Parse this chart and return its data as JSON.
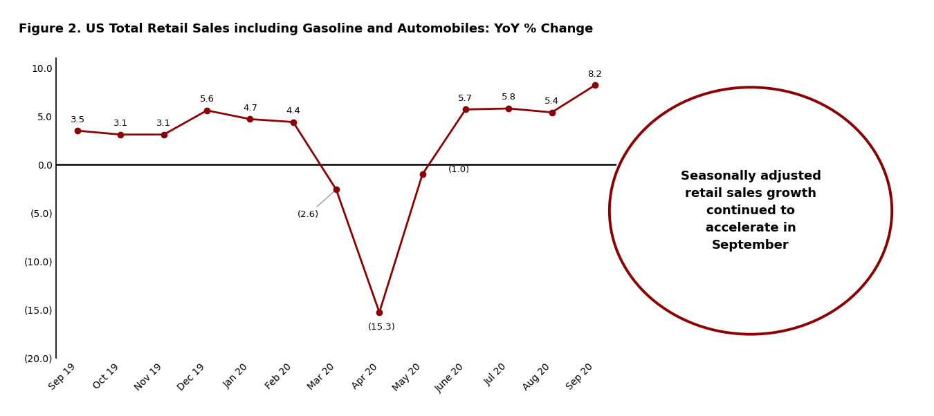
{
  "title": "Figure 2. US Total Retail Sales including Gasoline and Automobiles: YoY % Change",
  "categories": [
    "Sep 19",
    "Oct 19",
    "Nov 19",
    "Dec 19",
    "Jan 20",
    "Feb 20",
    "Mar 20",
    "Apr 20",
    "May 20",
    "June 20",
    "Jul 20",
    "Aug 20",
    "Sep 20"
  ],
  "values": [
    3.5,
    3.1,
    3.1,
    5.6,
    4.7,
    4.4,
    -2.6,
    -15.3,
    -1.0,
    5.7,
    5.8,
    5.4,
    8.2
  ],
  "line_color": "#8B0000",
  "marker_color": "#8B0000",
  "ylim": [
    -20.0,
    11.0
  ],
  "yticks": [
    10.0,
    5.0,
    0.0,
    -5.0,
    -10.0,
    -15.0,
    -20.0
  ],
  "ytick_labels": [
    "10.0",
    "5.0",
    "0.0",
    "(5.0)",
    "(10.0)",
    "(15.0)",
    "(20.0)"
  ],
  "background_color": "#ffffff",
  "title_fontsize": 13,
  "circle_text": "Seasonally adjusted\nretail sales growth\ncontinued to\naccelerate in\nSeptember",
  "circle_color": "#8B0000"
}
